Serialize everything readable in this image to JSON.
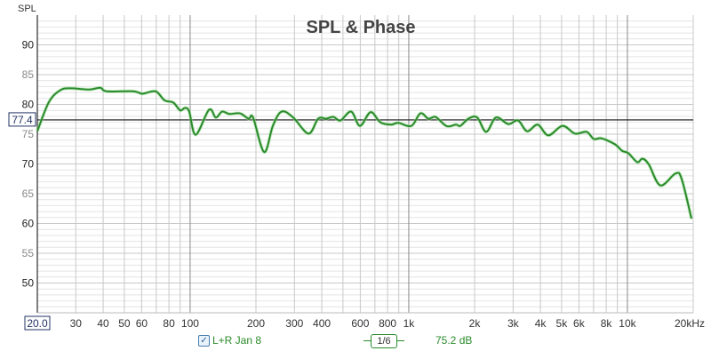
{
  "chart_data": {
    "type": "line",
    "title": "SPL & Phase",
    "ylabel": "SPL",
    "xlabel": "",
    "xscale": "log",
    "xlim": [
      20,
      20000
    ],
    "ylim": [
      45,
      95
    ],
    "y_ticks": [
      90,
      85,
      80,
      75,
      70,
      65,
      60,
      55,
      50
    ],
    "x_ticks": [
      {
        "value": 20,
        "label": "20.0"
      },
      {
        "value": 30,
        "label": "30"
      },
      {
        "value": 40,
        "label": "40"
      },
      {
        "value": 50,
        "label": "50"
      },
      {
        "value": 60,
        "label": "60"
      },
      {
        "value": 80,
        "label": "80"
      },
      {
        "value": 100,
        "label": "100"
      },
      {
        "value": 200,
        "label": "200"
      },
      {
        "value": 300,
        "label": "300"
      },
      {
        "value": 400,
        "label": "400"
      },
      {
        "value": 600,
        "label": "600"
      },
      {
        "value": 800,
        "label": "800"
      },
      {
        "value": 1000,
        "label": "1k"
      },
      {
        "value": 2000,
        "label": "2k"
      },
      {
        "value": 3000,
        "label": "3k"
      },
      {
        "value": 4000,
        "label": "4k"
      },
      {
        "value": 5000,
        "label": "5k"
      },
      {
        "value": 6000,
        "label": "6k"
      },
      {
        "value": 8000,
        "label": "8k"
      },
      {
        "value": 10000,
        "label": "10k"
      },
      {
        "value": 20000,
        "label": "20kHz"
      }
    ],
    "cursor_level": {
      "value": 77.4,
      "label": "77.4"
    },
    "grid": true,
    "series": [
      {
        "name": "L+R Jan 8",
        "color": "#2a8a2a",
        "points": [
          [
            20,
            75.5
          ],
          [
            22.6,
            80.4
          ],
          [
            25.5,
            82.4
          ],
          [
            28.5,
            82.7
          ],
          [
            34.6,
            82.5
          ],
          [
            38.8,
            82.8
          ],
          [
            41.5,
            82.2
          ],
          [
            55,
            82.2
          ],
          [
            60.4,
            81.8
          ],
          [
            69.5,
            82.2
          ],
          [
            76.3,
            80.7
          ],
          [
            83.8,
            80.3
          ],
          [
            90,
            79
          ],
          [
            94.6,
            79.4
          ],
          [
            99,
            78.8
          ],
          [
            106,
            74.9
          ],
          [
            122,
            79.1
          ],
          [
            131,
            77.8
          ],
          [
            140,
            78.8
          ],
          [
            151,
            78.4
          ],
          [
            169,
            78.5
          ],
          [
            185,
            77.6
          ],
          [
            194,
            77.8
          ],
          [
            218,
            72
          ],
          [
            239,
            76.4
          ],
          [
            262,
            78.8
          ],
          [
            296,
            77.8
          ],
          [
            348,
            75.1
          ],
          [
            385,
            77.6
          ],
          [
            419,
            77.6
          ],
          [
            452,
            77.9
          ],
          [
            487,
            77.3
          ],
          [
            545,
            78.8
          ],
          [
            598,
            76.4
          ],
          [
            669,
            78.7
          ],
          [
            741,
            77
          ],
          [
            830,
            76.6
          ],
          [
            894,
            76.9
          ],
          [
            1028,
            76.4
          ],
          [
            1130,
            78.5
          ],
          [
            1230,
            77.6
          ],
          [
            1324,
            77.9
          ],
          [
            1455,
            76.6
          ],
          [
            1525,
            76.3
          ],
          [
            1644,
            76.6
          ],
          [
            1722,
            76.4
          ],
          [
            1876,
            77.6
          ],
          [
            2056,
            77.8
          ],
          [
            2260,
            75.4
          ],
          [
            2506,
            77.8
          ],
          [
            2852,
            76.7
          ],
          [
            3162,
            77.3
          ],
          [
            3476,
            75.5
          ],
          [
            3890,
            76.6
          ],
          [
            4346,
            74.8
          ],
          [
            5050,
            76.4
          ],
          [
            5754,
            75.1
          ],
          [
            6500,
            75.4
          ],
          [
            7016,
            74.2
          ],
          [
            7620,
            74.3
          ],
          [
            8770,
            73.3
          ],
          [
            9460,
            72.2
          ],
          [
            10100,
            71.8
          ],
          [
            11100,
            70.3
          ],
          [
            11720,
            70.9
          ],
          [
            12540,
            69.9
          ],
          [
            14140,
            66.4
          ],
          [
            16600,
            68.4
          ],
          [
            17700,
            67.5
          ],
          [
            19640,
            60.8
          ]
        ]
      }
    ]
  },
  "legend": {
    "series_label": "L+R Jan 8",
    "checked": true,
    "smoothing": "1/6",
    "level": "75.2 dB"
  }
}
